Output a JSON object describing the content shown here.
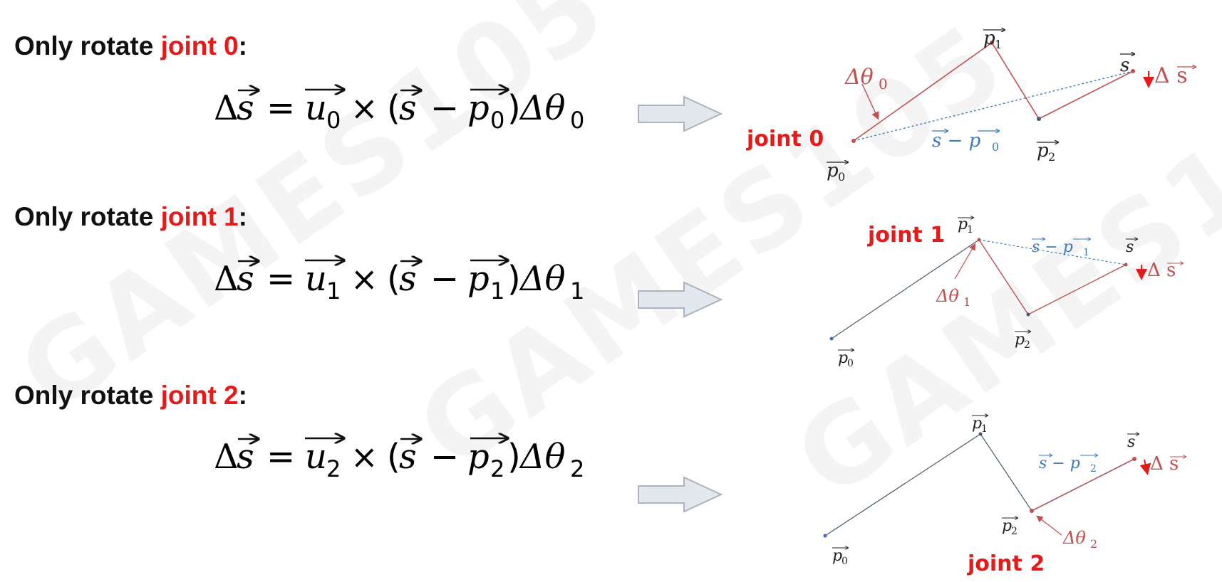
{
  "watermark": "GAMES105",
  "rows": [
    {
      "heading_prefix": "Only rotate ",
      "heading_joint": "joint 0",
      "heading_suffix": ":",
      "index": "0",
      "diagram": {
        "joint_label": "joint 0",
        "p0": "p",
        "p0_sub": "0",
        "p1": "p",
        "p1_sub": "1",
        "p2": "p",
        "p2_sub": "2",
        "s": "s",
        "delta_theta": "Δθ",
        "delta_theta_sub": "0",
        "delta_s": "Δ s",
        "diff": "s − p",
        "diff_sub": "0"
      }
    },
    {
      "heading_prefix": "Only rotate ",
      "heading_joint": "joint 1",
      "heading_suffix": ":",
      "index": "1",
      "diagram": {
        "joint_label": "joint 1",
        "p0": "p",
        "p0_sub": "0",
        "p1": "p",
        "p1_sub": "1",
        "p2": "p",
        "p2_sub": "2",
        "s": "s",
        "delta_theta": "Δθ",
        "delta_theta_sub": "1",
        "delta_s": "Δ s",
        "diff": "s − p",
        "diff_sub": "1"
      }
    },
    {
      "heading_prefix": "Only rotate ",
      "heading_joint": "joint 2",
      "heading_suffix": ":",
      "index": "2",
      "diagram": {
        "joint_label": "joint 2",
        "p0": "p",
        "p0_sub": "0",
        "p1": "p",
        "p1_sub": "1",
        "p2": "p",
        "p2_sub": "2",
        "s": "s",
        "delta_theta": "Δθ",
        "delta_theta_sub": "2",
        "delta_s": "Δ s",
        "diff": "s − p",
        "diff_sub": "2"
      }
    }
  ],
  "formula": {
    "delta": "Δ",
    "s": "s",
    "equals": "=",
    "u": "u",
    "times": "×",
    "open": "(",
    "minus": "−",
    "p": "p",
    "close": ")",
    "theta": "Δθ"
  },
  "colors": {
    "accent_red": "#e31b1b",
    "chain_red": "#c0504d",
    "chain_gray": "#4a5a6a",
    "diff_blue": "#3a7bbf",
    "arrow_fill": "#e3e8ee",
    "arrow_stroke": "#aab4c0"
  }
}
